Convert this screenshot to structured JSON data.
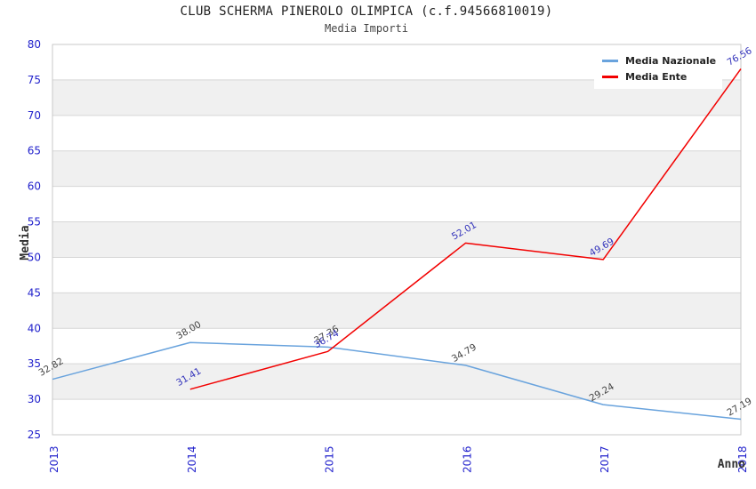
{
  "header": {
    "title": "CLUB SCHERMA PINEROLO OLIMPICA (c.f.94566810019)",
    "subtitle": "Media Importi"
  },
  "axis_titles": {
    "y": "Media",
    "x": "Anno"
  },
  "legend": {
    "items": [
      {
        "label": "Media Nazionale",
        "color": "#69a3dd"
      },
      {
        "label": "Media Ente",
        "color": "#f20000"
      }
    ]
  },
  "colors": {
    "tick_label": "#2222cc",
    "band": "#f0f0f0",
    "grid": "#d6d6d6",
    "plot_border": "#c8c8c8",
    "title_text": "#222222",
    "nazionale_line": "#69a3dd",
    "ente_line": "#f20000",
    "nazionale_value_label": "#444444",
    "ente_value_label": "#3333bb"
  },
  "chart_data": {
    "type": "line",
    "title": "CLUB SCHERMA PINEROLO OLIMPICA (c.f.94566810019)",
    "subtitle": "Media Importi",
    "xlabel": "Anno",
    "ylabel": "Media",
    "x": [
      2013,
      2014,
      2015,
      2016,
      2017,
      2018
    ],
    "ylim": [
      25,
      80
    ],
    "ytick_step": 5,
    "yticks": [
      25,
      30,
      35,
      40,
      45,
      50,
      55,
      60,
      65,
      70,
      75,
      80
    ],
    "grid": true,
    "alternating_bands": true,
    "legend_position": "top-right",
    "point_label_rotation_deg": -30,
    "xtick_rotation_deg": -90,
    "series": [
      {
        "name": "Media Nazionale",
        "color": "#69a3dd",
        "label_color": "#444444",
        "x": [
          2013,
          2014,
          2015,
          2016,
          2017,
          2018
        ],
        "values": [
          32.82,
          38.0,
          37.36,
          34.79,
          29.24,
          27.19
        ]
      },
      {
        "name": "Media Ente",
        "color": "#f20000",
        "label_color": "#3333bb",
        "x": [
          2014,
          2015,
          2016,
          2017,
          2018
        ],
        "values": [
          31.41,
          36.74,
          52.01,
          49.69,
          76.56
        ]
      }
    ]
  }
}
